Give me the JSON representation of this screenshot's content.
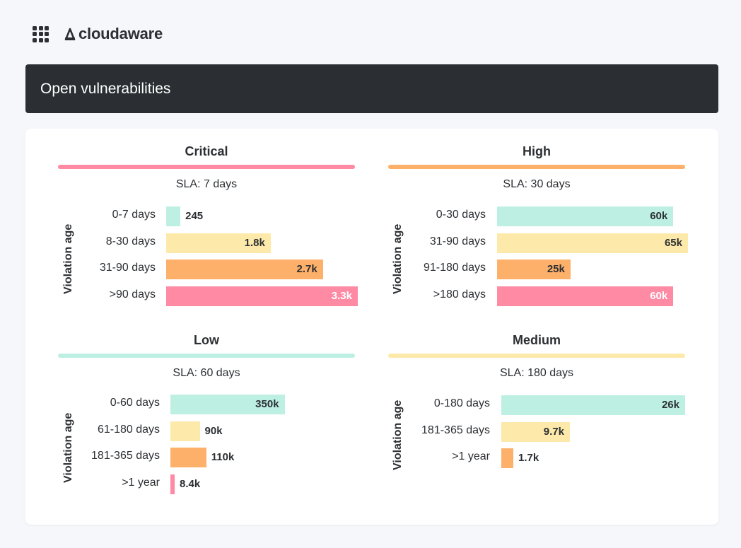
{
  "header": {
    "apps_icon": "grid-icon",
    "logo_text": "cloudaware"
  },
  "banner": {
    "title": "Open vulnerabilities"
  },
  "colors": {
    "critical": "#fe8aa4",
    "high": "#fdb06a",
    "low": "#bdf0e3",
    "medium": "#fdeaaa"
  },
  "chart_data": [
    {
      "type": "bar",
      "orientation": "horizontal",
      "title": "Critical",
      "subtitle": "SLA: 7 days",
      "ylabel": "Violation age",
      "categories": [
        "0-7 days",
        "8-30 days",
        "31-90 days",
        ">90 days"
      ],
      "values": [
        245,
        1800,
        2700,
        3300
      ],
      "value_labels": [
        "245",
        "1.8k",
        "2.7k",
        "3.3k"
      ],
      "xlim": [
        0,
        3300
      ],
      "accent": "#fe8aa4"
    },
    {
      "type": "bar",
      "orientation": "horizontal",
      "title": "High",
      "subtitle": "SLA: 30 days",
      "ylabel": "Violation age",
      "categories": [
        "0-30 days",
        "31-90 days",
        "91-180 days",
        ">180 days"
      ],
      "values": [
        60000,
        65000,
        25000,
        60000
      ],
      "value_labels": [
        "60k",
        "65k",
        "25k",
        "60k"
      ],
      "xlim": [
        0,
        65000
      ],
      "accent": "#fdb06a"
    },
    {
      "type": "bar",
      "orientation": "horizontal",
      "title": "Low",
      "subtitle": "SLA: 60 days",
      "ylabel": "Violation age",
      "categories": [
        "0-60 days",
        "61-180 days",
        "181-365 days",
        ">1 year"
      ],
      "values": [
        350000,
        90000,
        110000,
        8400
      ],
      "value_labels": [
        "350k",
        "90k",
        "110k",
        "8.4k"
      ],
      "xlim": [
        0,
        520000
      ],
      "accent": "#bdf0e3"
    },
    {
      "type": "bar",
      "orientation": "horizontal",
      "title": "Medium",
      "subtitle": "SLA: 180 days",
      "ylabel": "Violation age",
      "categories": [
        "0-180 days",
        "181-365 days",
        ">1 year"
      ],
      "values": [
        26000,
        9700,
        1700
      ],
      "value_labels": [
        "26k",
        "9.7k",
        "1.7k"
      ],
      "xlim": [
        0,
        26000
      ],
      "accent": "#fdeaaa"
    }
  ]
}
